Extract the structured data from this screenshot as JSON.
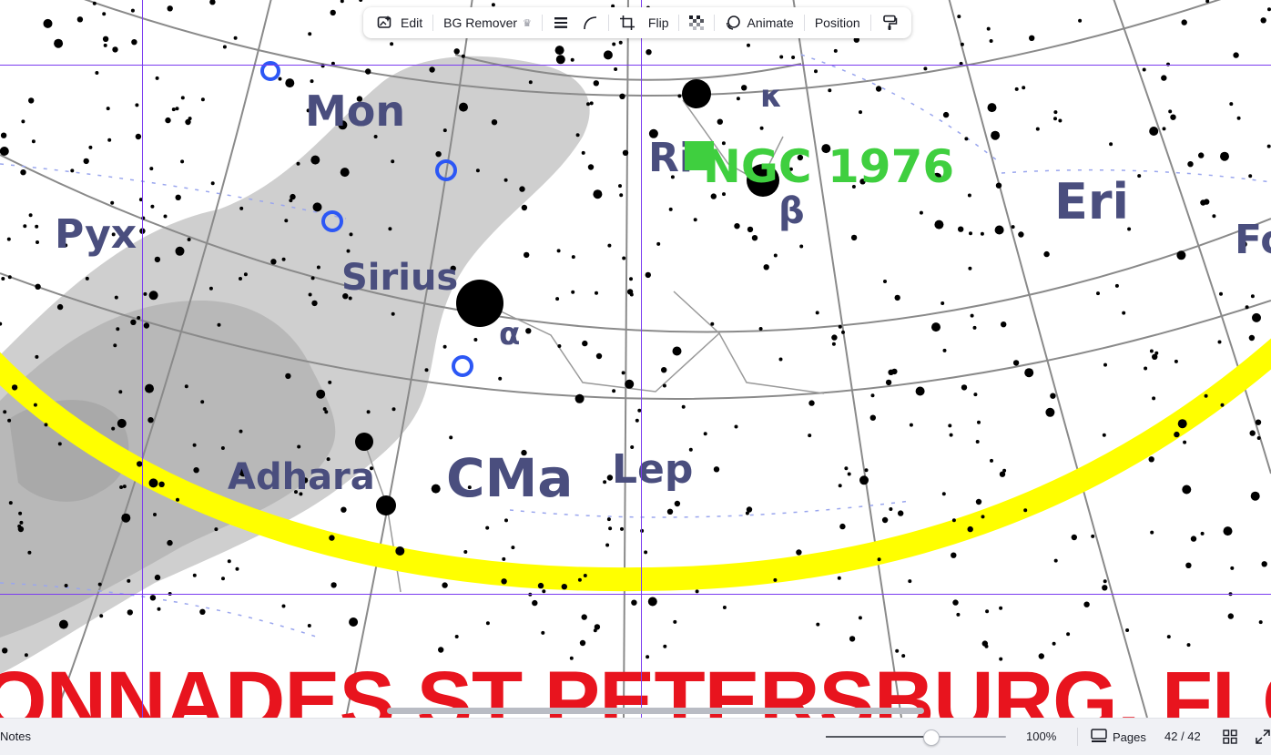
{
  "toolbar": {
    "edit_label": "Edit",
    "bg_remover_label": "BG Remover",
    "flip_label": "Flip",
    "animate_label": "Animate",
    "position_label": "Position",
    "icons": [
      "edit-image-icon",
      "crown-icon",
      "border-style-icon",
      "corner-rounding-icon",
      "crop-icon",
      "transparency-icon",
      "animate-icon",
      "copy-style-icon"
    ]
  },
  "canvas": {
    "constellations": {
      "mon": "Mon",
      "pyx": "Pyx",
      "cma": "CMa",
      "lep": "Lep",
      "eri": "Eri",
      "for_partial": "Fo"
    },
    "stars": {
      "sirius": "Sirius",
      "adhara": "Adhara",
      "alpha": "α",
      "beta": "β",
      "rigel_partial": "Ri",
      "kappa": "κ"
    },
    "ngc_label": "NGC 1976",
    "banner_text": "ONNADES ST PETERSBURG, FLOR",
    "colors": {
      "ecliptic": "#ffff00",
      "guides": "#7b3cf0",
      "banner": "#e8141e",
      "ngc": "#3fcf3f",
      "milky_way": "#c9c9c9"
    }
  },
  "bottom_bar": {
    "notes_label": "Notes",
    "zoom_value": "100%",
    "zoom_fraction": 0.58,
    "pages_label": "Pages",
    "page_indicator": "42 / 42"
  }
}
